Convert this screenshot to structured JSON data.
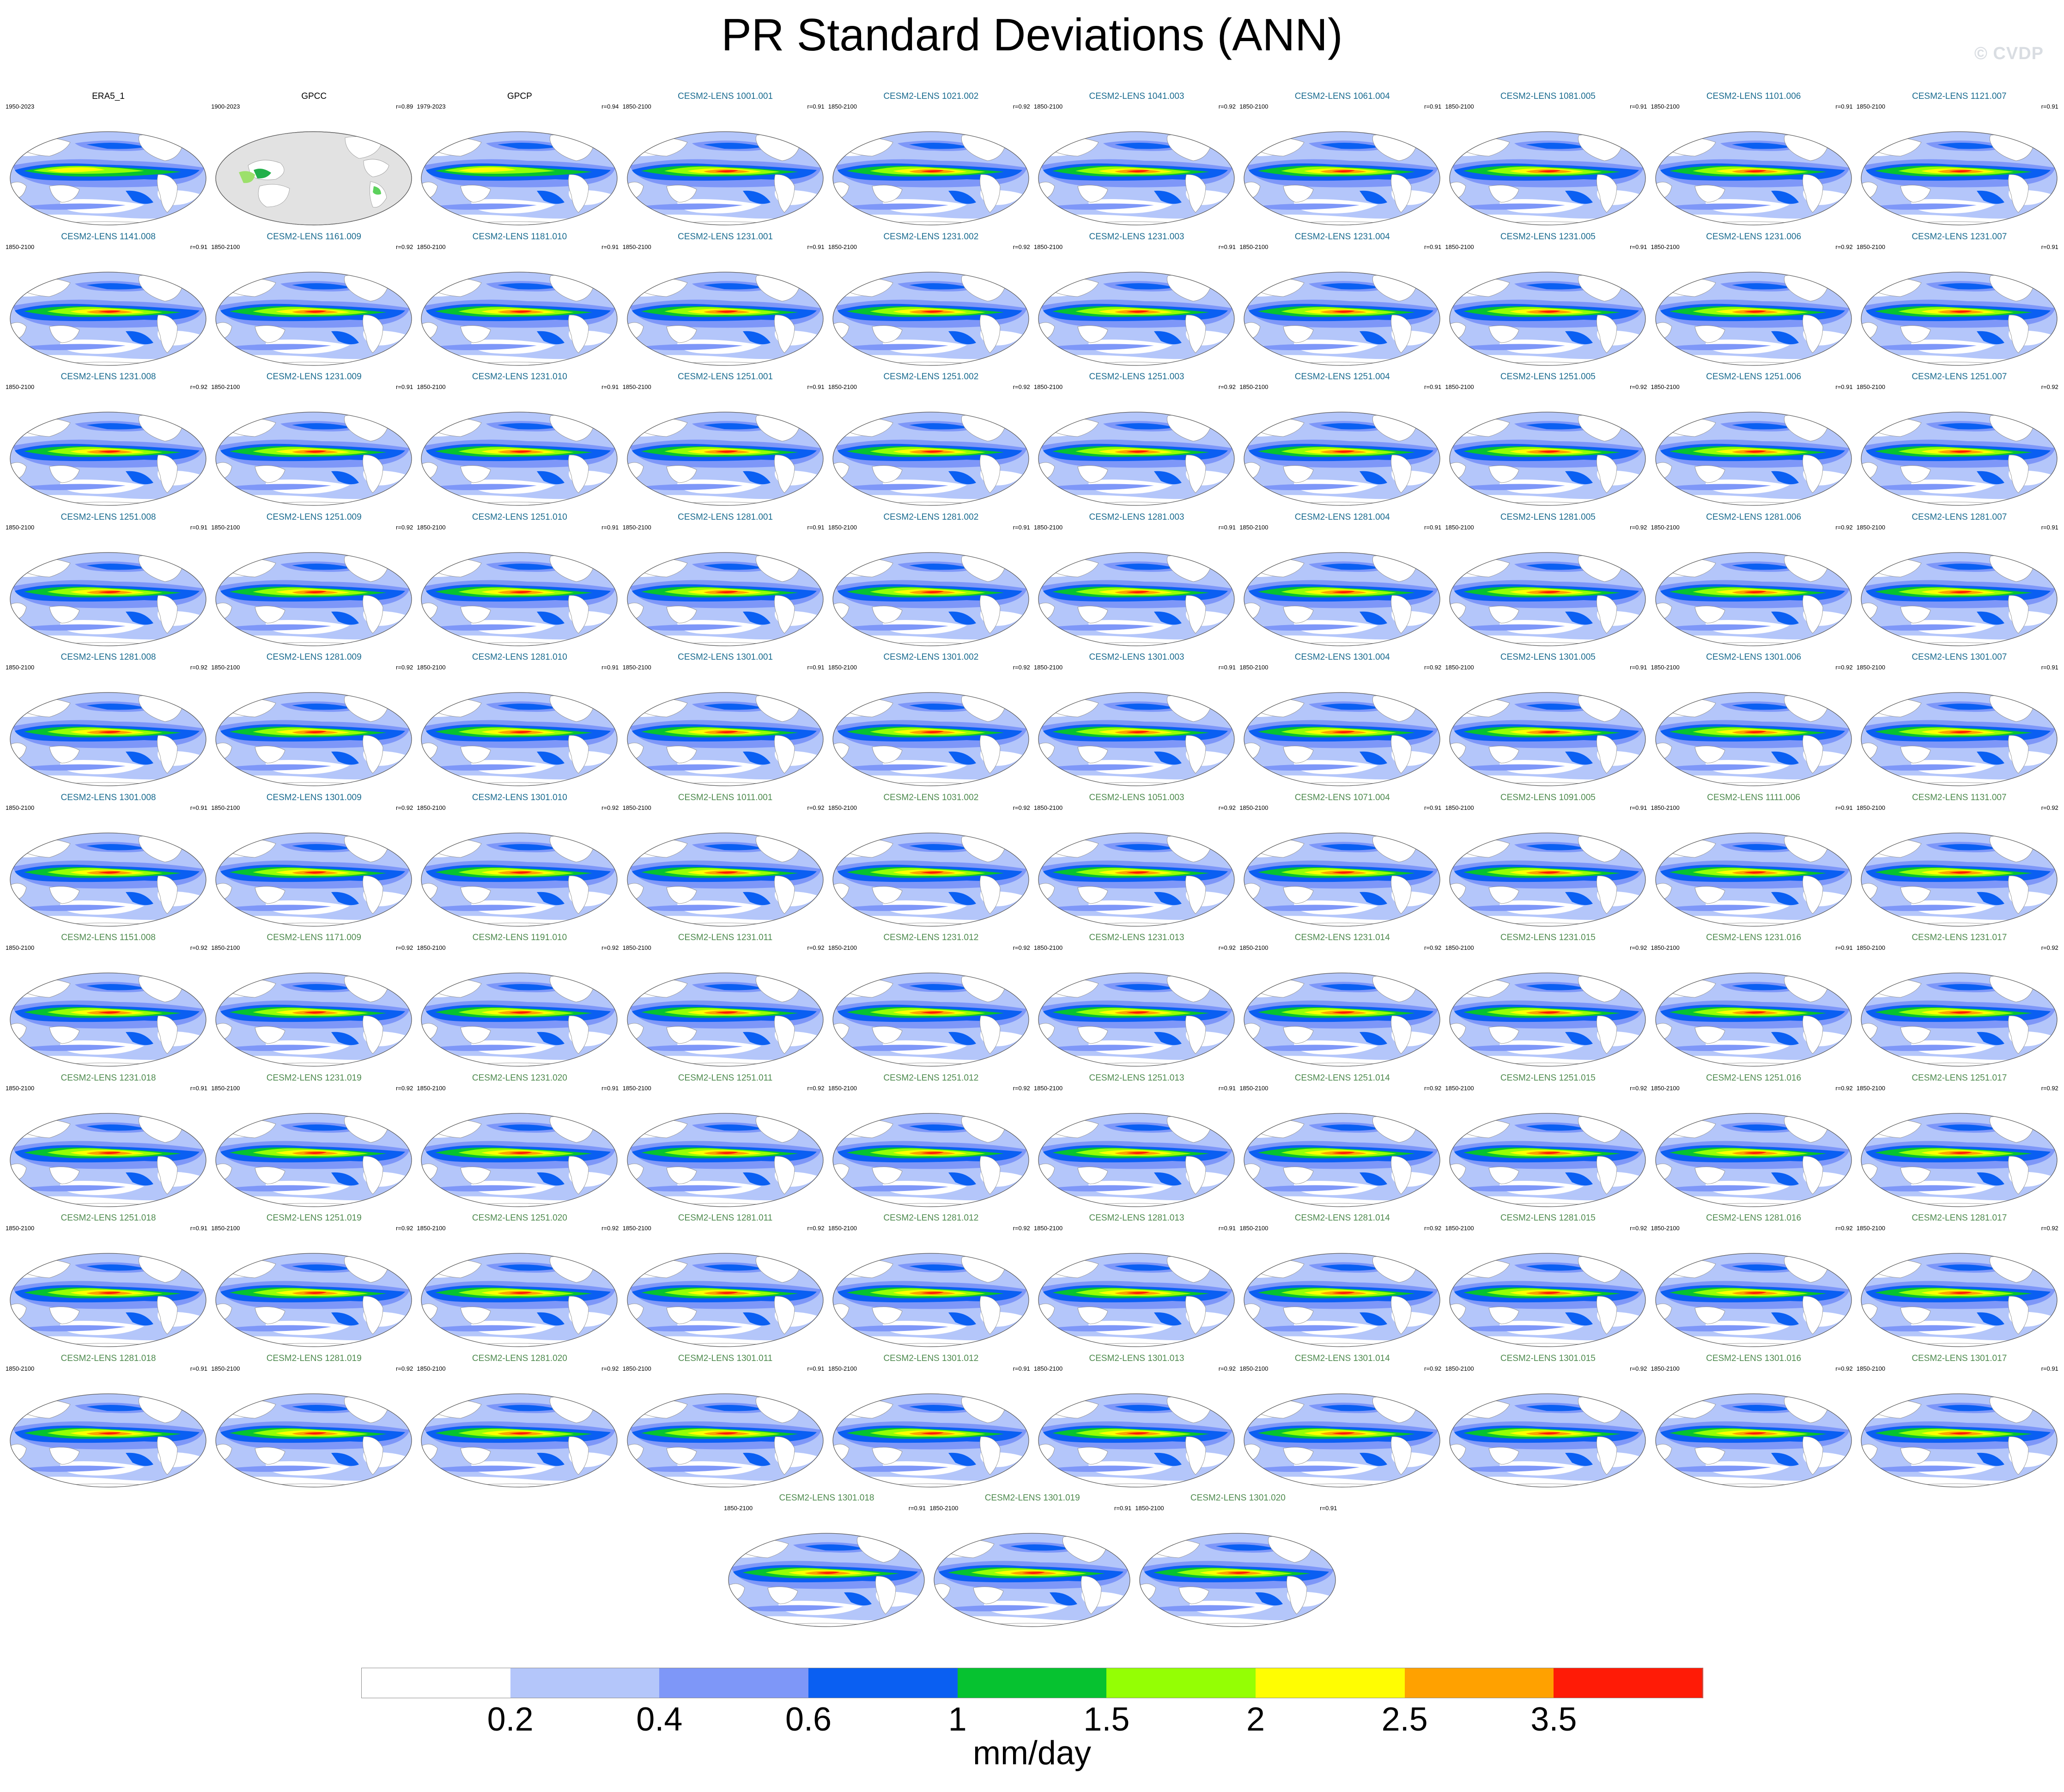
{
  "figure": {
    "title": "PR Standard Deviations (ANN)",
    "watermark": "© CVDP",
    "units": "mm/day"
  },
  "colorbar": {
    "tick_labels": [
      "0.2",
      "0.4",
      "0.6",
      "1",
      "1.5",
      "2",
      "2.5",
      "3.5"
    ],
    "colors": [
      "#ffffff",
      "#b4c6fa",
      "#7e97f8",
      "#0a5ff2",
      "#06c230",
      "#94ff04",
      "#fffd02",
      "#ffa100",
      "#ff1b06"
    ]
  },
  "title_colors": {
    "observation": "#000000",
    "ensemble_set_a": "#1a6b8f",
    "ensemble_set_b": "#4e8a4e"
  },
  "panels": [
    {
      "title": "ERA5_1",
      "years": "1950-2023",
      "corr": "",
      "kind": "observation"
    },
    {
      "title": "GPCC",
      "years": "1900-2023",
      "corr": "r=0.89",
      "kind": "gpcc"
    },
    {
      "title": "GPCP",
      "years": "1979-2023",
      "corr": "r=0.94",
      "kind": "observation"
    },
    {
      "title": "CESM2-LENS 1001.001",
      "years": "1850-2100",
      "corr": "r=0.91",
      "kind": "ensemble_set_a"
    },
    {
      "title": "CESM2-LENS 1021.002",
      "years": "1850-2100",
      "corr": "r=0.92",
      "kind": "ensemble_set_a"
    },
    {
      "title": "CESM2-LENS 1041.003",
      "years": "1850-2100",
      "corr": "r=0.92",
      "kind": "ensemble_set_a"
    },
    {
      "title": "CESM2-LENS 1061.004",
      "years": "1850-2100",
      "corr": "r=0.91",
      "kind": "ensemble_set_a"
    },
    {
      "title": "CESM2-LENS 1081.005",
      "years": "1850-2100",
      "corr": "r=0.91",
      "kind": "ensemble_set_a"
    },
    {
      "title": "CESM2-LENS 1101.006",
      "years": "1850-2100",
      "corr": "r=0.91",
      "kind": "ensemble_set_a"
    },
    {
      "title": "CESM2-LENS 1121.007",
      "years": "1850-2100",
      "corr": "r=0.91",
      "kind": "ensemble_set_a"
    },
    {
      "title": "CESM2-LENS 1141.008",
      "years": "1850-2100",
      "corr": "r=0.91",
      "kind": "ensemble_set_a"
    },
    {
      "title": "CESM2-LENS 1161.009",
      "years": "1850-2100",
      "corr": "r=0.92",
      "kind": "ensemble_set_a"
    },
    {
      "title": "CESM2-LENS 1181.010",
      "years": "1850-2100",
      "corr": "r=0.91",
      "kind": "ensemble_set_a"
    },
    {
      "title": "CESM2-LENS 1231.001",
      "years": "1850-2100",
      "corr": "r=0.91",
      "kind": "ensemble_set_a"
    },
    {
      "title": "CESM2-LENS 1231.002",
      "years": "1850-2100",
      "corr": "r=0.92",
      "kind": "ensemble_set_a"
    },
    {
      "title": "CESM2-LENS 1231.003",
      "years": "1850-2100",
      "corr": "r=0.91",
      "kind": "ensemble_set_a"
    },
    {
      "title": "CESM2-LENS 1231.004",
      "years": "1850-2100",
      "corr": "r=0.91",
      "kind": "ensemble_set_a"
    },
    {
      "title": "CESM2-LENS 1231.005",
      "years": "1850-2100",
      "corr": "r=0.91",
      "kind": "ensemble_set_a"
    },
    {
      "title": "CESM2-LENS 1231.006",
      "years": "1850-2100",
      "corr": "r=0.92",
      "kind": "ensemble_set_a"
    },
    {
      "title": "CESM2-LENS 1231.007",
      "years": "1850-2100",
      "corr": "r=0.91",
      "kind": "ensemble_set_a"
    },
    {
      "title": "CESM2-LENS 1231.008",
      "years": "1850-2100",
      "corr": "r=0.92",
      "kind": "ensemble_set_a"
    },
    {
      "title": "CESM2-LENS 1231.009",
      "years": "1850-2100",
      "corr": "r=0.91",
      "kind": "ensemble_set_a"
    },
    {
      "title": "CESM2-LENS 1231.010",
      "years": "1850-2100",
      "corr": "r=0.91",
      "kind": "ensemble_set_a"
    },
    {
      "title": "CESM2-LENS 1251.001",
      "years": "1850-2100",
      "corr": "r=0.91",
      "kind": "ensemble_set_a"
    },
    {
      "title": "CESM2-LENS 1251.002",
      "years": "1850-2100",
      "corr": "r=0.92",
      "kind": "ensemble_set_a"
    },
    {
      "title": "CESM2-LENS 1251.003",
      "years": "1850-2100",
      "corr": "r=0.92",
      "kind": "ensemble_set_a"
    },
    {
      "title": "CESM2-LENS 1251.004",
      "years": "1850-2100",
      "corr": "r=0.91",
      "kind": "ensemble_set_a"
    },
    {
      "title": "CESM2-LENS 1251.005",
      "years": "1850-2100",
      "corr": "r=0.92",
      "kind": "ensemble_set_a"
    },
    {
      "title": "CESM2-LENS 1251.006",
      "years": "1850-2100",
      "corr": "r=0.91",
      "kind": "ensemble_set_a"
    },
    {
      "title": "CESM2-LENS 1251.007",
      "years": "1850-2100",
      "corr": "r=0.92",
      "kind": "ensemble_set_a"
    },
    {
      "title": "CESM2-LENS 1251.008",
      "years": "1850-2100",
      "corr": "r=0.91",
      "kind": "ensemble_set_a"
    },
    {
      "title": "CESM2-LENS 1251.009",
      "years": "1850-2100",
      "corr": "r=0.92",
      "kind": "ensemble_set_a"
    },
    {
      "title": "CESM2-LENS 1251.010",
      "years": "1850-2100",
      "corr": "r=0.91",
      "kind": "ensemble_set_a"
    },
    {
      "title": "CESM2-LENS 1281.001",
      "years": "1850-2100",
      "corr": "r=0.91",
      "kind": "ensemble_set_a"
    },
    {
      "title": "CESM2-LENS 1281.002",
      "years": "1850-2100",
      "corr": "r=0.91",
      "kind": "ensemble_set_a"
    },
    {
      "title": "CESM2-LENS 1281.003",
      "years": "1850-2100",
      "corr": "r=0.91",
      "kind": "ensemble_set_a"
    },
    {
      "title": "CESM2-LENS 1281.004",
      "years": "1850-2100",
      "corr": "r=0.91",
      "kind": "ensemble_set_a"
    },
    {
      "title": "CESM2-LENS 1281.005",
      "years": "1850-2100",
      "corr": "r=0.92",
      "kind": "ensemble_set_a"
    },
    {
      "title": "CESM2-LENS 1281.006",
      "years": "1850-2100",
      "corr": "r=0.92",
      "kind": "ensemble_set_a"
    },
    {
      "title": "CESM2-LENS 1281.007",
      "years": "1850-2100",
      "corr": "r=0.91",
      "kind": "ensemble_set_a"
    },
    {
      "title": "CESM2-LENS 1281.008",
      "years": "1850-2100",
      "corr": "r=0.92",
      "kind": "ensemble_set_a"
    },
    {
      "title": "CESM2-LENS 1281.009",
      "years": "1850-2100",
      "corr": "r=0.92",
      "kind": "ensemble_set_a"
    },
    {
      "title": "CESM2-LENS 1281.010",
      "years": "1850-2100",
      "corr": "r=0.91",
      "kind": "ensemble_set_a"
    },
    {
      "title": "CESM2-LENS 1301.001",
      "years": "1850-2100",
      "corr": "r=0.91",
      "kind": "ensemble_set_a"
    },
    {
      "title": "CESM2-LENS 1301.002",
      "years": "1850-2100",
      "corr": "r=0.92",
      "kind": "ensemble_set_a"
    },
    {
      "title": "CESM2-LENS 1301.003",
      "years": "1850-2100",
      "corr": "r=0.91",
      "kind": "ensemble_set_a"
    },
    {
      "title": "CESM2-LENS 1301.004",
      "years": "1850-2100",
      "corr": "r=0.92",
      "kind": "ensemble_set_a"
    },
    {
      "title": "CESM2-LENS 1301.005",
      "years": "1850-2100",
      "corr": "r=0.91",
      "kind": "ensemble_set_a"
    },
    {
      "title": "CESM2-LENS 1301.006",
      "years": "1850-2100",
      "corr": "r=0.92",
      "kind": "ensemble_set_a"
    },
    {
      "title": "CESM2-LENS 1301.007",
      "years": "1850-2100",
      "corr": "r=0.91",
      "kind": "ensemble_set_a"
    },
    {
      "title": "CESM2-LENS 1301.008",
      "years": "1850-2100",
      "corr": "r=0.91",
      "kind": "ensemble_set_a"
    },
    {
      "title": "CESM2-LENS 1301.009",
      "years": "1850-2100",
      "corr": "r=0.92",
      "kind": "ensemble_set_a"
    },
    {
      "title": "CESM2-LENS 1301.010",
      "years": "1850-2100",
      "corr": "r=0.92",
      "kind": "ensemble_set_a"
    },
    {
      "title": "CESM2-LENS 1011.001",
      "years": "1850-2100",
      "corr": "r=0.92",
      "kind": "ensemble_set_b"
    },
    {
      "title": "CESM2-LENS 1031.002",
      "years": "1850-2100",
      "corr": "r=0.92",
      "kind": "ensemble_set_b"
    },
    {
      "title": "CESM2-LENS 1051.003",
      "years": "1850-2100",
      "corr": "r=0.92",
      "kind": "ensemble_set_b"
    },
    {
      "title": "CESM2-LENS 1071.004",
      "years": "1850-2100",
      "corr": "r=0.91",
      "kind": "ensemble_set_b"
    },
    {
      "title": "CESM2-LENS 1091.005",
      "years": "1850-2100",
      "corr": "r=0.91",
      "kind": "ensemble_set_b"
    },
    {
      "title": "CESM2-LENS 1111.006",
      "years": "1850-2100",
      "corr": "r=0.91",
      "kind": "ensemble_set_b"
    },
    {
      "title": "CESM2-LENS 1131.007",
      "years": "1850-2100",
      "corr": "r=0.92",
      "kind": "ensemble_set_b"
    },
    {
      "title": "CESM2-LENS 1151.008",
      "years": "1850-2100",
      "corr": "r=0.92",
      "kind": "ensemble_set_b"
    },
    {
      "title": "CESM2-LENS 1171.009",
      "years": "1850-2100",
      "corr": "r=0.92",
      "kind": "ensemble_set_b"
    },
    {
      "title": "CESM2-LENS 1191.010",
      "years": "1850-2100",
      "corr": "r=0.92",
      "kind": "ensemble_set_b"
    },
    {
      "title": "CESM2-LENS 1231.011",
      "years": "1850-2100",
      "corr": "r=0.92",
      "kind": "ensemble_set_b"
    },
    {
      "title": "CESM2-LENS 1231.012",
      "years": "1850-2100",
      "corr": "r=0.92",
      "kind": "ensemble_set_b"
    },
    {
      "title": "CESM2-LENS 1231.013",
      "years": "1850-2100",
      "corr": "r=0.92",
      "kind": "ensemble_set_b"
    },
    {
      "title": "CESM2-LENS 1231.014",
      "years": "1850-2100",
      "corr": "r=0.92",
      "kind": "ensemble_set_b"
    },
    {
      "title": "CESM2-LENS 1231.015",
      "years": "1850-2100",
      "corr": "r=0.92",
      "kind": "ensemble_set_b"
    },
    {
      "title": "CESM2-LENS 1231.016",
      "years": "1850-2100",
      "corr": "r=0.91",
      "kind": "ensemble_set_b"
    },
    {
      "title": "CESM2-LENS 1231.017",
      "years": "1850-2100",
      "corr": "r=0.92",
      "kind": "ensemble_set_b"
    },
    {
      "title": "CESM2-LENS 1231.018",
      "years": "1850-2100",
      "corr": "r=0.91",
      "kind": "ensemble_set_b"
    },
    {
      "title": "CESM2-LENS 1231.019",
      "years": "1850-2100",
      "corr": "r=0.92",
      "kind": "ensemble_set_b"
    },
    {
      "title": "CESM2-LENS 1231.020",
      "years": "1850-2100",
      "corr": "r=0.91",
      "kind": "ensemble_set_b"
    },
    {
      "title": "CESM2-LENS 1251.011",
      "years": "1850-2100",
      "corr": "r=0.92",
      "kind": "ensemble_set_b"
    },
    {
      "title": "CESM2-LENS 1251.012",
      "years": "1850-2100",
      "corr": "r=0.92",
      "kind": "ensemble_set_b"
    },
    {
      "title": "CESM2-LENS 1251.013",
      "years": "1850-2100",
      "corr": "r=0.91",
      "kind": "ensemble_set_b"
    },
    {
      "title": "CESM2-LENS 1251.014",
      "years": "1850-2100",
      "corr": "r=0.92",
      "kind": "ensemble_set_b"
    },
    {
      "title": "CESM2-LENS 1251.015",
      "years": "1850-2100",
      "corr": "r=0.92",
      "kind": "ensemble_set_b"
    },
    {
      "title": "CESM2-LENS 1251.016",
      "years": "1850-2100",
      "corr": "r=0.92",
      "kind": "ensemble_set_b"
    },
    {
      "title": "CESM2-LENS 1251.017",
      "years": "1850-2100",
      "corr": "r=0.92",
      "kind": "ensemble_set_b"
    },
    {
      "title": "CESM2-LENS 1251.018",
      "years": "1850-2100",
      "corr": "r=0.91",
      "kind": "ensemble_set_b"
    },
    {
      "title": "CESM2-LENS 1251.019",
      "years": "1850-2100",
      "corr": "r=0.92",
      "kind": "ensemble_set_b"
    },
    {
      "title": "CESM2-LENS 1251.020",
      "years": "1850-2100",
      "corr": "r=0.92",
      "kind": "ensemble_set_b"
    },
    {
      "title": "CESM2-LENS 1281.011",
      "years": "1850-2100",
      "corr": "r=0.92",
      "kind": "ensemble_set_b"
    },
    {
      "title": "CESM2-LENS 1281.012",
      "years": "1850-2100",
      "corr": "r=0.92",
      "kind": "ensemble_set_b"
    },
    {
      "title": "CESM2-LENS 1281.013",
      "years": "1850-2100",
      "corr": "r=0.91",
      "kind": "ensemble_set_b"
    },
    {
      "title": "CESM2-LENS 1281.014",
      "years": "1850-2100",
      "corr": "r=0.92",
      "kind": "ensemble_set_b"
    },
    {
      "title": "CESM2-LENS 1281.015",
      "years": "1850-2100",
      "corr": "r=0.92",
      "kind": "ensemble_set_b"
    },
    {
      "title": "CESM2-LENS 1281.016",
      "years": "1850-2100",
      "corr": "r=0.92",
      "kind": "ensemble_set_b"
    },
    {
      "title": "CESM2-LENS 1281.017",
      "years": "1850-2100",
      "corr": "r=0.92",
      "kind": "ensemble_set_b"
    },
    {
      "title": "CESM2-LENS 1281.018",
      "years": "1850-2100",
      "corr": "r=0.91",
      "kind": "ensemble_set_b"
    },
    {
      "title": "CESM2-LENS 1281.019",
      "years": "1850-2100",
      "corr": "r=0.92",
      "kind": "ensemble_set_b"
    },
    {
      "title": "CESM2-LENS 1281.020",
      "years": "1850-2100",
      "corr": "r=0.92",
      "kind": "ensemble_set_b"
    },
    {
      "title": "CESM2-LENS 1301.011",
      "years": "1850-2100",
      "corr": "r=0.91",
      "kind": "ensemble_set_b"
    },
    {
      "title": "CESM2-LENS 1301.012",
      "years": "1850-2100",
      "corr": "r=0.91",
      "kind": "ensemble_set_b"
    },
    {
      "title": "CESM2-LENS 1301.013",
      "years": "1850-2100",
      "corr": "r=0.92",
      "kind": "ensemble_set_b"
    },
    {
      "title": "CESM2-LENS 1301.014",
      "years": "1850-2100",
      "corr": "r=0.92",
      "kind": "ensemble_set_b"
    },
    {
      "title": "CESM2-LENS 1301.015",
      "years": "1850-2100",
      "corr": "r=0.92",
      "kind": "ensemble_set_b"
    },
    {
      "title": "CESM2-LENS 1301.016",
      "years": "1850-2100",
      "corr": "r=0.92",
      "kind": "ensemble_set_b"
    },
    {
      "title": "CESM2-LENS 1301.017",
      "years": "1850-2100",
      "corr": "r=0.91",
      "kind": "ensemble_set_b"
    },
    {
      "title": "CESM2-LENS 1301.018",
      "years": "1850-2100",
      "corr": "r=0.91",
      "kind": "ensemble_set_b"
    },
    {
      "title": "CESM2-LENS 1301.019",
      "years": "1850-2100",
      "corr": "r=0.91",
      "kind": "ensemble_set_b"
    },
    {
      "title": "CESM2-LENS 1301.020",
      "years": "1850-2100",
      "corr": "r=0.91",
      "kind": "ensemble_set_b"
    }
  ]
}
